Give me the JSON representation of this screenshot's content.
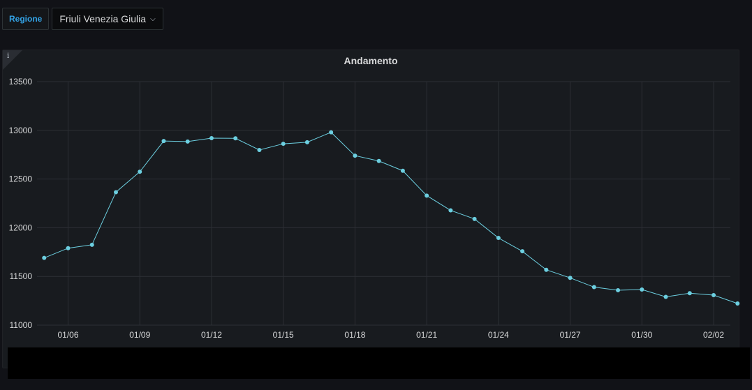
{
  "variables": {
    "regione_label": "Regione",
    "regione_value": "Friuli Venezia Giulia"
  },
  "panel": {
    "title": "Andamento",
    "info_icon": "info-icon"
  },
  "colors": {
    "series": "#6ccfe0",
    "grid": "#2c2f35",
    "axis_text": "#d8d9da"
  },
  "chart_data": {
    "type": "line",
    "title": "Andamento",
    "ylim": [
      11000,
      13500
    ],
    "y_ticks": [
      11000,
      11500,
      12000,
      12500,
      13000,
      13500
    ],
    "x_tick_labels": [
      "01/06",
      "01/09",
      "01/12",
      "01/15",
      "01/18",
      "01/21",
      "01/24",
      "01/27",
      "01/30",
      "02/02"
    ],
    "x_tick_day_index": [
      1,
      4,
      7,
      10,
      13,
      16,
      19,
      22,
      25,
      28
    ],
    "x_day_range": [
      -0.3,
      28.7
    ],
    "grid": true,
    "legend": "none",
    "series": [
      {
        "values": [
          11690,
          11790,
          11825,
          12365,
          12575,
          12890,
          12885,
          12920,
          12918,
          12798,
          12862,
          12878,
          12980,
          12740,
          12685,
          12585,
          12330,
          12178,
          12090,
          11895,
          11758,
          11568,
          11485,
          11390,
          11358,
          11365,
          11290,
          11328,
          11308,
          11222
        ]
      }
    ]
  }
}
